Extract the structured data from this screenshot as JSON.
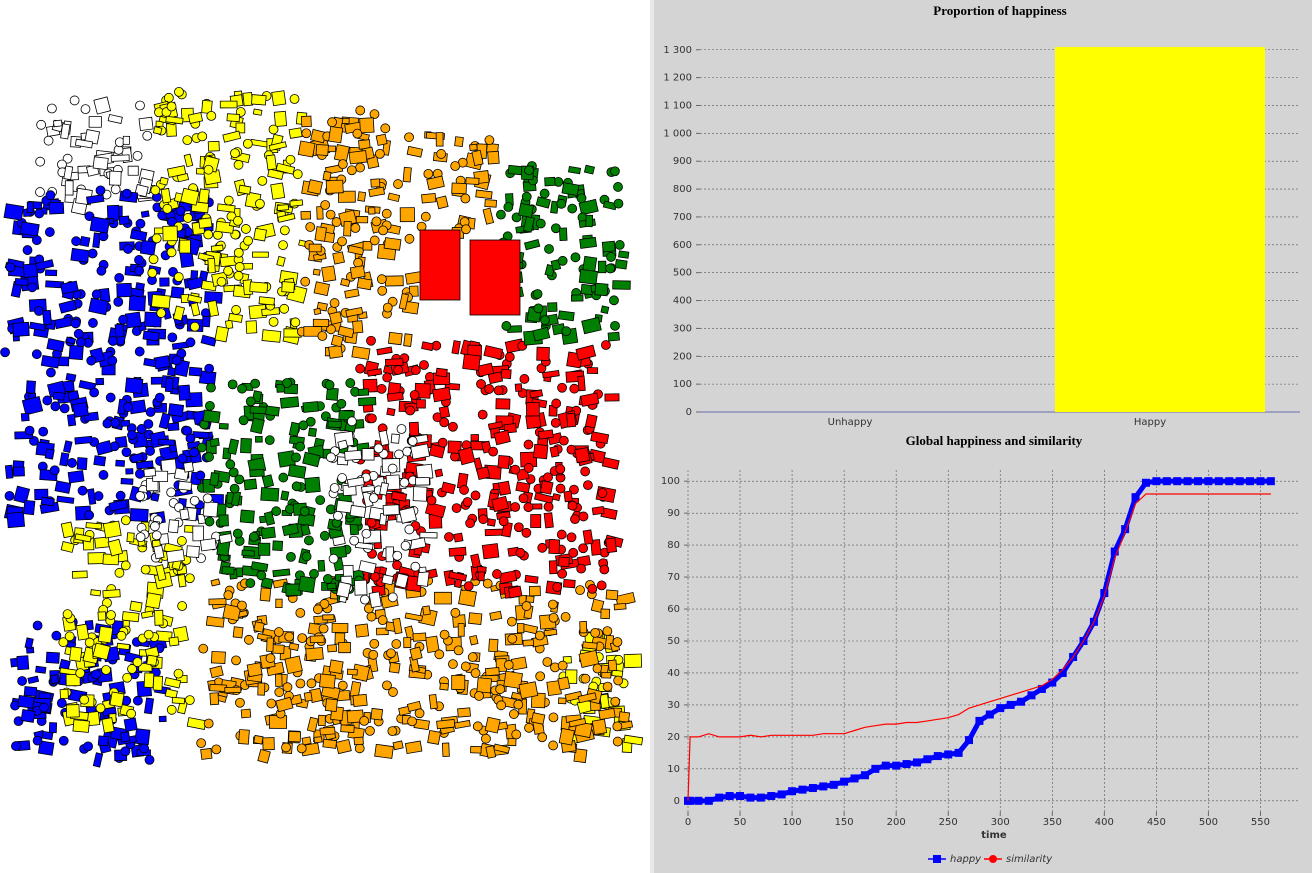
{
  "chart_data": [
    {
      "type": "bar",
      "title": "Proportion of happiness",
      "categories": [
        "Unhappy",
        "Happy"
      ],
      "values": [
        0,
        1310
      ],
      "color": "#ffff00",
      "ylim": [
        0,
        1335
      ],
      "yticks": [
        0,
        100,
        200,
        300,
        400,
        500,
        600,
        700,
        800,
        900,
        {
          "value": 1000,
          "label": "1 000"
        },
        {
          "value": 1100,
          "label": "1 100"
        },
        {
          "value": 1200,
          "label": "1 200"
        },
        {
          "value": 1300,
          "label": "1 300"
        }
      ],
      "grid": true
    },
    {
      "type": "line",
      "title": "Global happiness and similarity",
      "xlabel": "time",
      "x": [
        0,
        2,
        10,
        20,
        30,
        40,
        50,
        60,
        70,
        80,
        90,
        100,
        110,
        120,
        130,
        140,
        150,
        160,
        170,
        180,
        190,
        200,
        210,
        220,
        230,
        240,
        250,
        260,
        270,
        280,
        290,
        300,
        310,
        320,
        330,
        340,
        350,
        360,
        370,
        380,
        390,
        400,
        410,
        420,
        430,
        440,
        450,
        460,
        470,
        480,
        490,
        500,
        510,
        520,
        530,
        540,
        550,
        560
      ],
      "series": [
        {
          "name": "happy",
          "color": "#0000ff",
          "values": [
            0,
            0,
            0,
            0,
            1,
            1.5,
            1.5,
            1,
            1,
            1.5,
            2,
            3,
            3.5,
            4,
            4.5,
            5,
            6,
            7,
            8,
            10,
            11,
            11,
            11.5,
            12,
            13,
            14,
            14.5,
            15,
            19,
            25,
            27,
            29,
            30,
            31,
            33,
            35,
            37,
            40,
            45,
            50,
            56,
            65,
            78,
            85,
            95,
            99.5,
            100,
            100,
            100,
            100,
            100,
            100,
            100,
            100,
            100,
            100,
            100,
            100
          ]
        },
        {
          "name": "similarity",
          "color": "#ff0000",
          "values": [
            0,
            20,
            20,
            21,
            20,
            20,
            20,
            20.5,
            20,
            20.5,
            20.5,
            20.5,
            20.5,
            20.5,
            21,
            21,
            21,
            22,
            23,
            23.5,
            24,
            24,
            24.5,
            24.5,
            25,
            25.5,
            26,
            27,
            29,
            30,
            31,
            32,
            33,
            34,
            35,
            36,
            38,
            41,
            45,
            50,
            56,
            64,
            76,
            84,
            93,
            96,
            96,
            96,
            96,
            96,
            96,
            96,
            96,
            96,
            96,
            96,
            96,
            96
          ]
        }
      ],
      "xlim": [
        0,
        588
      ],
      "xticks": [
        0,
        50,
        100,
        150,
        200,
        250,
        300,
        350,
        400,
        450,
        500,
        550
      ],
      "ylim": [
        -3.5,
        103.5
      ],
      "yticks": [
        0,
        10,
        20,
        30,
        40,
        50,
        60,
        70,
        80,
        90,
        100
      ],
      "grid": true,
      "legend": "bottom"
    }
  ]
}
